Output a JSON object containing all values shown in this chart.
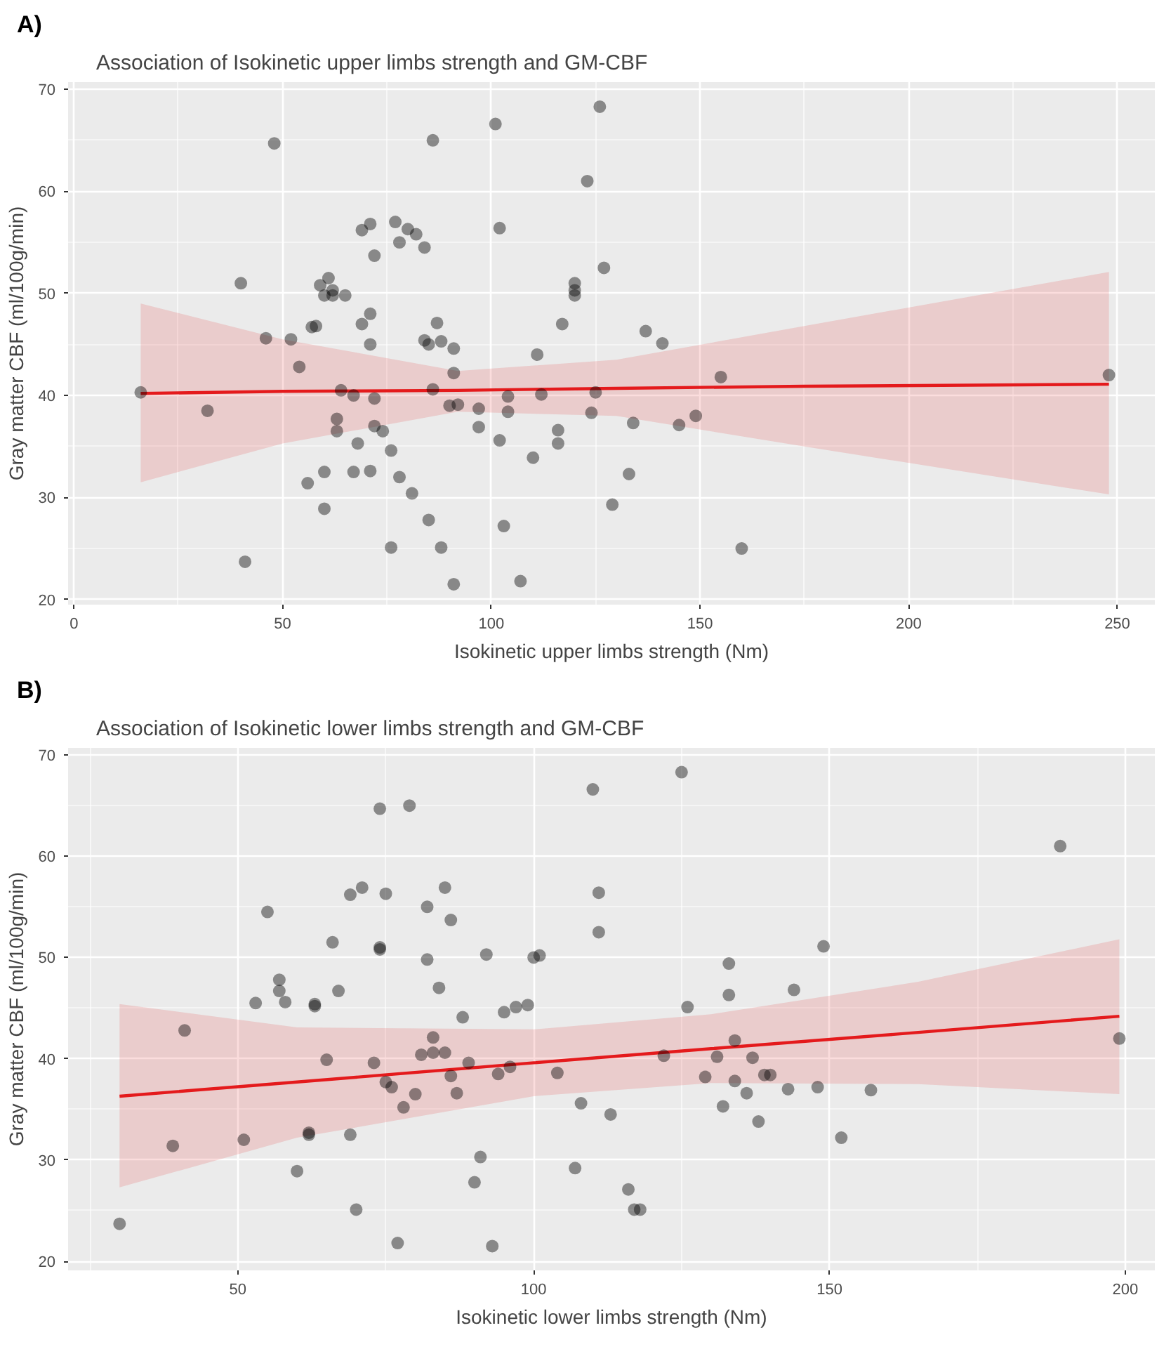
{
  "chart_data": [
    {
      "type": "scatter",
      "title": "Association of Isokinetic upper limbs strength and GM-CBF",
      "xlabel": "Isokinetic upper limbs strength (Nm)",
      "ylabel": "Gray matter CBF (ml/100g/min)",
      "annotations": [
        "A)"
      ],
      "xlim": [
        -1.4,
        259
      ],
      "ylim": [
        19.5,
        70.7
      ],
      "xticks": [
        0,
        50,
        100,
        150,
        200,
        250
      ],
      "yticks": [
        20,
        30,
        40,
        50,
        60,
        70
      ],
      "grid": true,
      "series": [
        {
          "marker": "circle",
          "color": "#000000",
          "x": [
            16,
            32,
            40,
            41,
            46,
            48,
            52,
            54,
            56,
            57,
            58,
            59,
            60,
            60,
            60,
            61,
            62,
            62,
            63,
            63,
            64,
            65,
            67,
            67,
            68,
            69,
            69,
            71,
            71,
            71,
            71,
            72,
            72,
            72,
            74,
            76,
            76,
            77,
            78,
            78,
            80,
            81,
            82,
            84,
            84,
            85,
            85,
            86,
            86,
            87,
            88,
            88,
            90,
            91,
            91,
            91,
            92,
            97,
            97,
            101,
            102,
            102,
            103,
            104,
            104,
            107,
            110,
            111,
            112,
            116,
            116,
            117,
            120,
            120,
            120,
            123,
            124,
            125,
            126,
            127,
            129,
            133,
            134,
            137,
            141,
            145,
            149,
            155,
            160,
            248
          ],
          "values": [
            40.3,
            38.5,
            51,
            23.7,
            45.6,
            64.7,
            45.5,
            42.8,
            31.4,
            46.7,
            46.8,
            50.8,
            32.5,
            28.9,
            49.8,
            51.5,
            50.3,
            49.8,
            36.5,
            37.7,
            40.5,
            49.8,
            40,
            32.5,
            35.3,
            56.2,
            47,
            56.8,
            32.6,
            48,
            45,
            39.7,
            37,
            53.7,
            36.5,
            25.1,
            34.6,
            57,
            32,
            55,
            56.3,
            30.4,
            55.8,
            54.5,
            45.4,
            27.8,
            45,
            65,
            40.6,
            47.1,
            25.1,
            45.3,
            39,
            21.5,
            44.6,
            42.2,
            39.1,
            38.7,
            36.9,
            66.6,
            56.4,
            35.6,
            27.2,
            38.4,
            39.9,
            21.8,
            33.9,
            44,
            40.1,
            36.6,
            35.3,
            47,
            51,
            50.3,
            49.8,
            61,
            38.3,
            40.3,
            68.3,
            52.5,
            29.3,
            32.3,
            37.3,
            46.3,
            45.1,
            37.1,
            38,
            41.8,
            25,
            42
          ]
        },
        {
          "type": "line",
          "color": "#e41a1c",
          "x": [
            16,
            50,
            92,
            130,
            175,
            248
          ],
          "values": [
            40.2,
            40.4,
            40.5,
            40.7,
            40.9,
            41.1
          ],
          "lower": [
            31.5,
            35.3,
            38.4,
            38.0,
            35.0,
            30.3
          ],
          "upper": [
            49.0,
            45.5,
            42.4,
            43.5,
            46.8,
            52.1
          ]
        }
      ]
    },
    {
      "type": "scatter",
      "title": "Association of Isokinetic lower limbs strength and GM-CBF",
      "xlabel": "Isokinetic lower limbs strength (Nm)",
      "ylabel": "Gray matter CBF (ml/100g/min)",
      "annotations": [
        "B)"
      ],
      "xlim": [
        21.3,
        205
      ],
      "ylim": [
        19.1,
        70.7
      ],
      "xticks": [
        50,
        100,
        150,
        200
      ],
      "yticks": [
        20,
        30,
        40,
        50,
        60,
        70
      ],
      "grid": true,
      "series": [
        {
          "marker": "circle",
          "color": "#000000",
          "x": [
            30,
            39,
            41,
            51,
            53,
            55,
            57,
            57,
            58,
            60,
            62,
            62,
            63,
            63,
            65,
            66,
            67,
            69,
            69,
            70,
            71,
            73,
            74,
            74,
            74,
            75,
            75,
            76,
            77,
            78,
            79,
            80,
            81,
            82,
            82,
            83,
            83,
            84,
            85,
            85,
            86,
            86,
            87,
            88,
            89,
            90,
            91,
            92,
            93,
            94,
            95,
            96,
            97,
            99,
            100,
            101,
            104,
            107,
            108,
            110,
            111,
            111,
            113,
            116,
            117,
            118,
            122,
            125,
            126,
            129,
            131,
            132,
            133,
            133,
            134,
            134,
            136,
            137,
            138,
            139,
            140,
            143,
            144,
            148,
            149,
            152,
            157,
            189,
            199
          ],
          "values": [
            23.7,
            31.4,
            42.8,
            32,
            45.5,
            54.5,
            46.7,
            47.8,
            45.6,
            28.9,
            32.7,
            32.5,
            45.2,
            45.4,
            39.9,
            51.5,
            46.7,
            56.2,
            32.5,
            25.1,
            56.9,
            39.6,
            64.7,
            51,
            50.8,
            37.7,
            56.3,
            37.2,
            21.8,
            35.2,
            65,
            36.5,
            40.4,
            55,
            49.8,
            42.1,
            40.6,
            47,
            40.6,
            56.9,
            53.7,
            38.3,
            36.6,
            44.1,
            39.6,
            27.8,
            30.3,
            50.3,
            21.5,
            38.5,
            44.6,
            39.2,
            45.1,
            45.3,
            50,
            50.2,
            38.6,
            29.2,
            35.6,
            66.6,
            56.4,
            52.5,
            34.5,
            27.1,
            25.1,
            25.1,
            40.3,
            68.3,
            45.1,
            38.2,
            40.2,
            35.3,
            49.4,
            46.3,
            41.8,
            37.8,
            36.6,
            40.1,
            33.8,
            38.4,
            38.4,
            37,
            46.8,
            37.2,
            51.1,
            32.2,
            36.9,
            61,
            42
          ]
        },
        {
          "type": "line",
          "color": "#e41a1c",
          "x": [
            30,
            60,
            100,
            130,
            165,
            199
          ],
          "values": [
            36.3,
            37.7,
            39.6,
            41.0,
            42.6,
            44.2
          ],
          "lower": [
            27.3,
            32.2,
            36.3,
            37.6,
            37.5,
            36.5
          ],
          "upper": [
            45.4,
            43.1,
            42.9,
            44.4,
            47.6,
            51.8
          ]
        }
      ]
    }
  ]
}
